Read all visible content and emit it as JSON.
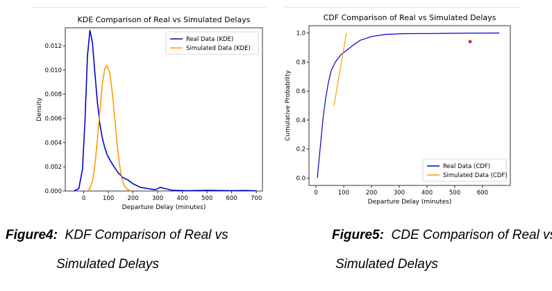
{
  "charts": [
    {
      "chart_data": {
        "type": "line",
        "title": "KDE Comparison of Real vs Simulated Delays",
        "xlabel": "Departure Delay (minutes)",
        "ylabel": "Density",
        "xlim": [
          -75,
          725
        ],
        "ylim": [
          0,
          0.0135
        ],
        "xticks": [
          0,
          100,
          200,
          300,
          400,
          500,
          600,
          700
        ],
        "yticks": [
          0.0,
          0.002,
          0.004,
          0.006,
          0.008,
          0.01,
          0.012
        ],
        "ytick_labels": [
          "0.000",
          "0.002",
          "0.004",
          "0.006",
          "0.008",
          "0.010",
          "0.012"
        ],
        "legend_position": "top-right",
        "grid": false,
        "series": [
          {
            "name": "Real Data (KDE)",
            "color": "#0000cc",
            "points": [
              [
                -40,
                0
              ],
              [
                -20,
                0.0002
              ],
              [
                -5,
                0.0018
              ],
              [
                5,
                0.0058
              ],
              [
                15,
                0.0112
              ],
              [
                25,
                0.0133
              ],
              [
                35,
                0.0123
              ],
              [
                45,
                0.0098
              ],
              [
                55,
                0.0074
              ],
              [
                65,
                0.0056
              ],
              [
                75,
                0.0044
              ],
              [
                85,
                0.0036
              ],
              [
                95,
                0.003
              ],
              [
                105,
                0.0026
              ],
              [
                120,
                0.0021
              ],
              [
                140,
                0.0015
              ],
              [
                160,
                0.0011
              ],
              [
                180,
                0.0009
              ],
              [
                200,
                0.0006
              ],
              [
                230,
                0.0003
              ],
              [
                260,
                0.0002
              ],
              [
                290,
                0.0001
              ],
              [
                310,
                0.0003
              ],
              [
                330,
                0.0002
              ],
              [
                360,
                5e-05
              ],
              [
                420,
                3e-05
              ],
              [
                500,
                5e-05
              ],
              [
                600,
                3e-05
              ],
              [
                650,
                4e-05
              ],
              [
                700,
                2e-05
              ]
            ]
          },
          {
            "name": "Simulated Data (KDE)",
            "color": "#ff9900",
            "points": [
              [
                15,
                0
              ],
              [
                25,
                0.0002
              ],
              [
                35,
                0.0008
              ],
              [
                45,
                0.0021
              ],
              [
                55,
                0.0042
              ],
              [
                65,
                0.0065
              ],
              [
                75,
                0.0088
              ],
              [
                85,
                0.0101
              ],
              [
                95,
                0.0104
              ],
              [
                105,
                0.0098
              ],
              [
                115,
                0.0083
              ],
              [
                125,
                0.0062
              ],
              [
                135,
                0.004
              ],
              [
                145,
                0.0022
              ],
              [
                155,
                0.001
              ],
              [
                165,
                0.0004
              ],
              [
                180,
                0.0001
              ],
              [
                190,
                0
              ]
            ]
          }
        ]
      },
      "caption": {
        "bold": "Figure4:",
        "rest": "KDF Comparison of Real vs",
        "line2": "Simulated Delays"
      }
    },
    {
      "chart_data": {
        "type": "line",
        "title": "CDF Comparison of Real vs Simulated Delays",
        "xlabel": "Departure Delay (minutes)",
        "ylabel": "Cumulative Probability",
        "xlim": [
          -25,
          700
        ],
        "ylim": [
          -0.05,
          1.05
        ],
        "xticks": [
          0,
          100,
          200,
          300,
          400,
          500,
          600
        ],
        "yticks": [
          0.0,
          0.2,
          0.4,
          0.6,
          0.8,
          1.0
        ],
        "ytick_labels": [
          "0.0",
          "0.2",
          "0.4",
          "0.6",
          "0.8",
          "1.0"
        ],
        "legend_position": "lower-right",
        "grid": false,
        "series": [
          {
            "name": "Real Data (CDF)",
            "color": "#0000cc",
            "points": [
              [
                5,
                0
              ],
              [
                15,
                0.2
              ],
              [
                25,
                0.4
              ],
              [
                35,
                0.55
              ],
              [
                45,
                0.66
              ],
              [
                55,
                0.74
              ],
              [
                70,
                0.8
              ],
              [
                90,
                0.85
              ],
              [
                110,
                0.88
              ],
              [
                130,
                0.91
              ],
              [
                160,
                0.95
              ],
              [
                200,
                0.975
              ],
              [
                250,
                0.99
              ],
              [
                320,
                0.995
              ],
              [
                400,
                0.996
              ],
              [
                500,
                0.998
              ],
              [
                660,
                1.0
              ]
            ]
          },
          {
            "name": "Simulated Data (CDF)",
            "color": "#ff9900",
            "points": [
              [
                65,
                0.5
              ],
              [
                110,
                1.0
              ]
            ]
          }
        ],
        "markers": [
          {
            "x": 555,
            "y": 0.94,
            "color": "#dd2222"
          }
        ]
      },
      "caption": {
        "bold": "Figure5:",
        "rest": "CDE Comparison of Real vs",
        "line2": "Simulated Delays"
      }
    }
  ]
}
